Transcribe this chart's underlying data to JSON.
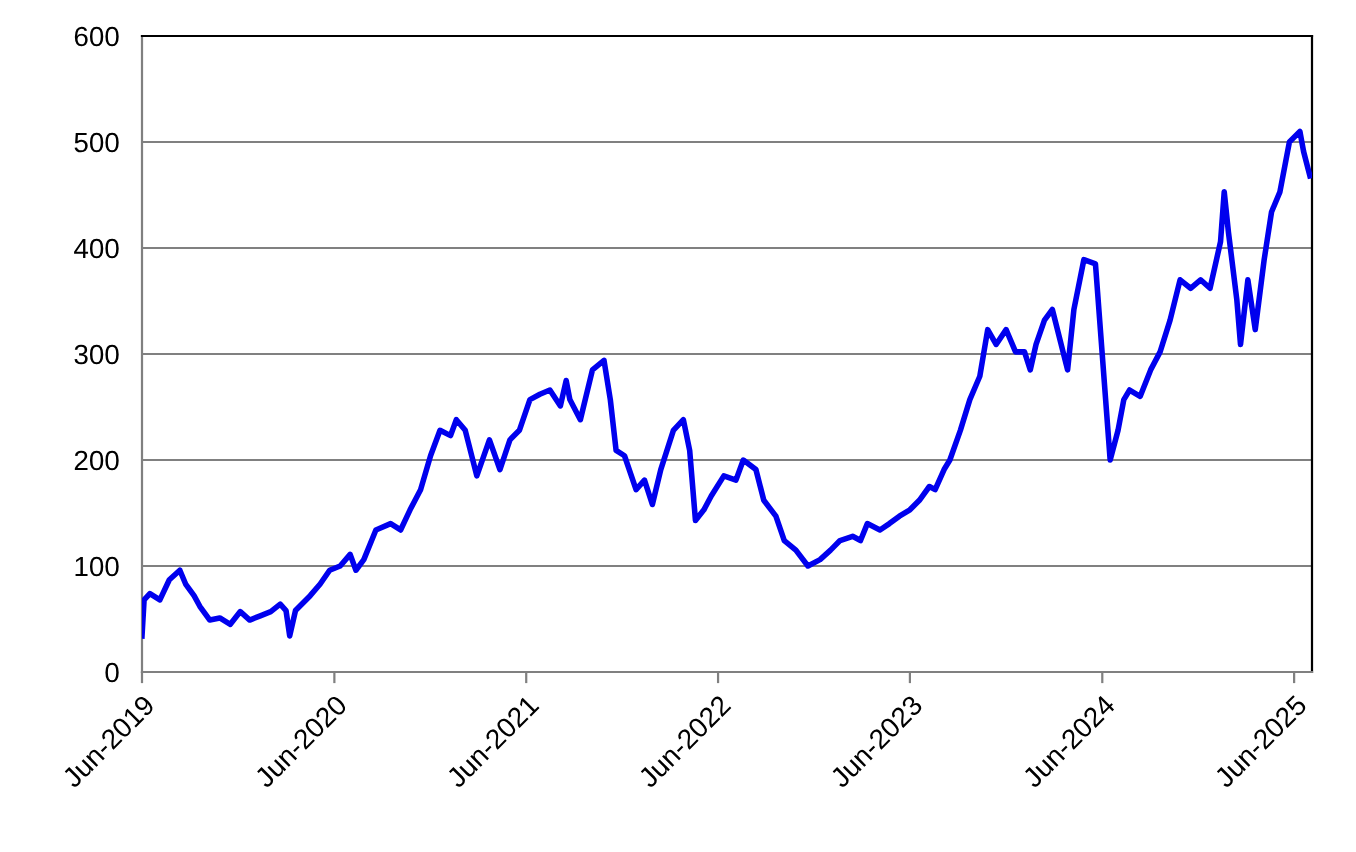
{
  "chart_data": {
    "type": "line",
    "x": [
      "2019-06-01",
      "2019-06-05",
      "2019-06-16",
      "2019-07-05",
      "2019-07-23",
      "2019-08-12",
      "2019-08-23",
      "2019-09-08",
      "2019-09-19",
      "2019-10-08",
      "2019-10-27",
      "2019-11-16",
      "2019-12-05",
      "2019-12-23",
      "2020-01-12",
      "2020-02-01",
      "2020-02-19",
      "2020-03-01",
      "2020-03-08",
      "2020-03-19",
      "2020-04-16",
      "2020-05-05",
      "2020-05-23",
      "2020-06-12",
      "2020-07-01",
      "2020-07-12",
      "2020-07-27",
      "2020-08-19",
      "2020-09-16",
      "2020-10-05",
      "2020-10-23",
      "2020-11-12",
      "2020-12-01",
      "2020-12-19",
      "2021-01-08",
      "2021-01-19",
      "2021-02-05",
      "2021-02-27",
      "2021-03-23",
      "2021-04-12",
      "2021-05-01",
      "2021-05-19",
      "2021-06-08",
      "2021-06-27",
      "2021-07-16",
      "2021-08-05",
      "2021-08-16",
      "2021-08-23",
      "2021-09-12",
      "2021-10-05",
      "2021-10-27",
      "2021-11-08",
      "2021-11-19",
      "2021-12-05",
      "2021-12-27",
      "2022-01-12",
      "2022-01-27",
      "2022-02-12",
      "2022-03-08",
      "2022-03-27",
      "2022-04-08",
      "2022-04-19",
      "2022-05-05",
      "2022-05-19",
      "2022-06-12",
      "2022-07-05",
      "2022-07-19",
      "2022-08-12",
      "2022-08-27",
      "2022-09-19",
      "2022-10-05",
      "2022-10-27",
      "2022-11-19",
      "2022-12-12",
      "2023-01-01",
      "2023-01-19",
      "2023-02-12",
      "2023-02-27",
      "2023-03-12",
      "2023-04-05",
      "2023-04-23",
      "2023-05-12",
      "2023-06-01",
      "2023-06-19",
      "2023-07-08",
      "2023-07-19",
      "2023-08-05",
      "2023-08-16",
      "2023-09-05",
      "2023-09-23",
      "2023-10-12",
      "2023-10-27",
      "2023-11-12",
      "2023-12-01",
      "2023-12-19",
      "2024-01-05",
      "2024-01-16",
      "2024-01-27",
      "2024-02-12",
      "2024-02-27",
      "2024-03-27",
      "2024-04-08",
      "2024-04-27",
      "2024-05-19",
      "2024-06-16",
      "2024-07-01",
      "2024-07-12",
      "2024-07-23",
      "2024-08-12",
      "2024-09-01",
      "2024-09-19",
      "2024-10-08",
      "2024-10-27",
      "2024-11-16",
      "2024-12-05",
      "2024-12-23",
      "2025-01-12",
      "2025-01-19",
      "2025-01-27",
      "2025-02-12",
      "2025-02-19",
      "2025-03-05",
      "2025-03-19",
      "2025-04-05",
      "2025-04-19",
      "2025-05-05",
      "2025-05-23",
      "2025-06-12",
      "2025-06-19",
      "2025-07-01"
    ],
    "series": [
      {
        "color": "#0000ee",
        "values": [
          34,
          68,
          74,
          68,
          87,
          96,
          83,
          72,
          62,
          49,
          51,
          45,
          57,
          49,
          53,
          57,
          64,
          58,
          34,
          58,
          72,
          83,
          96,
          100,
          111,
          96,
          106,
          134,
          140,
          134,
          153,
          172,
          204,
          228,
          223,
          238,
          228,
          185,
          219,
          191,
          219,
          228,
          257,
          262,
          266,
          251,
          275,
          257,
          238,
          285,
          294,
          257,
          209,
          204,
          172,
          181,
          158,
          191,
          228,
          238,
          209,
          143,
          153,
          166,
          185,
          181,
          200,
          191,
          162,
          147,
          124,
          115,
          100,
          106,
          115,
          124,
          128,
          124,
          140,
          134,
          140,
          147,
          153,
          162,
          175,
          172,
          191,
          200,
          228,
          257,
          279,
          323,
          309,
          323,
          302,
          302,
          285,
          309,
          332,
          342,
          285,
          342,
          389,
          385,
          200,
          228,
          257,
          266,
          260,
          285,
          302,
          332,
          370,
          362,
          370,
          362,
          406,
          453,
          415,
          351,
          309,
          370,
          323,
          389,
          434,
          453,
          500,
          510,
          491,
          468
        ]
      }
    ],
    "xlim": [
      "2019-06-01",
      "2025-07-05"
    ],
    "xticks": [
      {
        "value": "2019-06-01",
        "label": "Jun-2019"
      },
      {
        "value": "2020-06-01",
        "label": "Jun-2020"
      },
      {
        "value": "2021-06-01",
        "label": "Jun-2021"
      },
      {
        "value": "2022-06-01",
        "label": "Jun-2022"
      },
      {
        "value": "2023-06-01",
        "label": "Jun-2023"
      },
      {
        "value": "2024-06-01",
        "label": "Jun-2024"
      },
      {
        "value": "2025-06-01",
        "label": "Jun-2025"
      }
    ],
    "ylim": [
      0,
      600
    ],
    "yticks": [
      0,
      100,
      200,
      300,
      400,
      500,
      600
    ],
    "grid": "y",
    "marker": "none",
    "line_style": "solid"
  }
}
